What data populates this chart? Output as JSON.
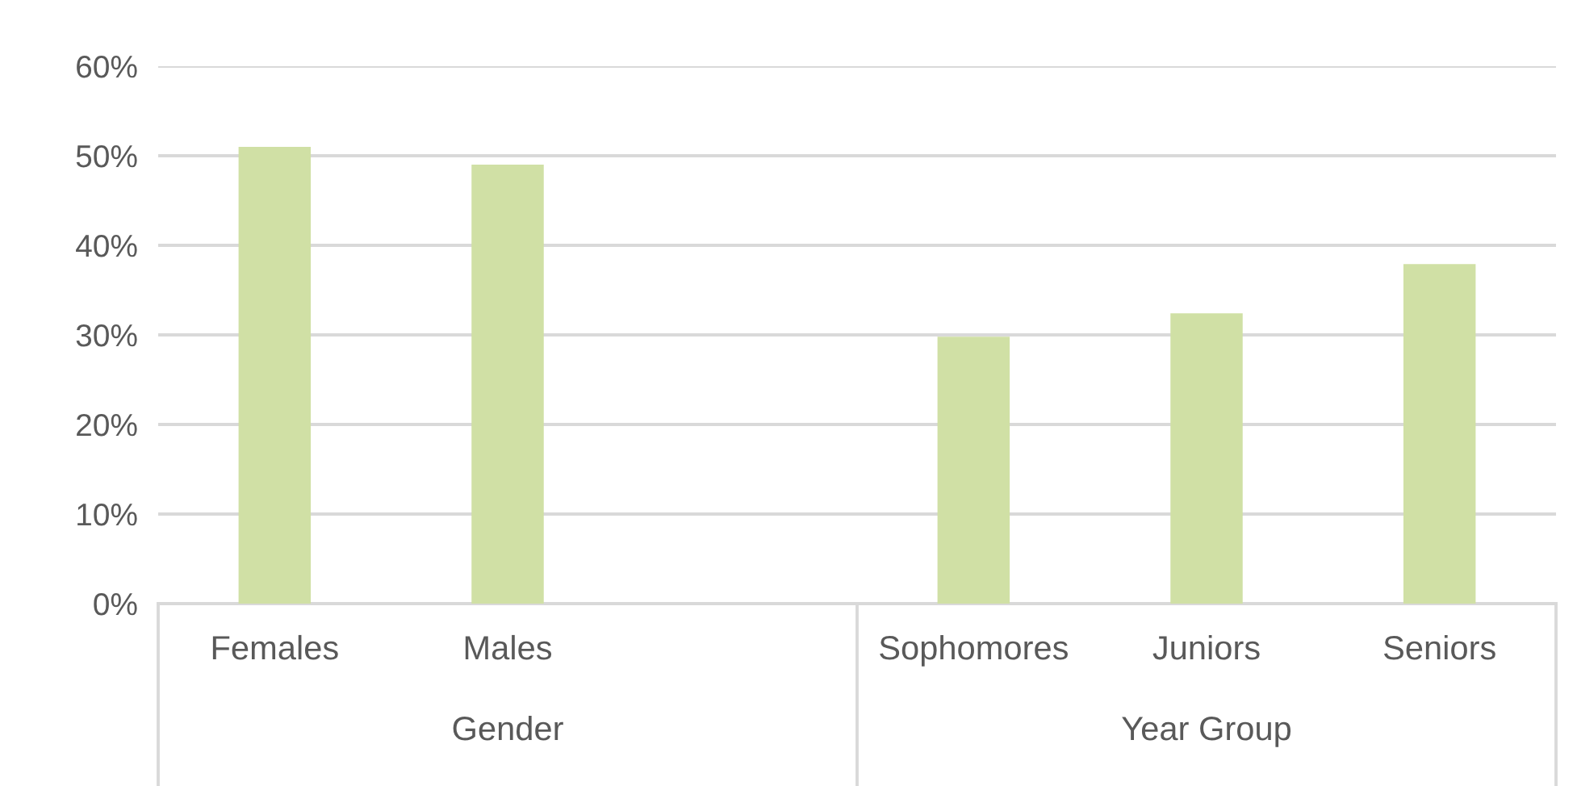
{
  "chart_data": {
    "type": "bar",
    "categories": [
      "Females",
      "Males",
      null,
      "Sophomores",
      "Juniors",
      "Seniors"
    ],
    "values": [
      51,
      49,
      null,
      29.8,
      32.4,
      37.9
    ],
    "color": "#d0e0a5",
    "ylim": [
      0,
      60
    ],
    "yticks": [
      {
        "value": 0,
        "label": "0%"
      },
      {
        "value": 10,
        "label": "10%"
      },
      {
        "value": 20,
        "label": "20%"
      },
      {
        "value": 30,
        "label": "30%"
      },
      {
        "value": 40,
        "label": "40%"
      },
      {
        "value": 50,
        "label": "50%"
      },
      {
        "value": 60,
        "label": "60%"
      }
    ],
    "grid": "y",
    "annotations": [
      "Gender",
      "Year Group"
    ]
  }
}
